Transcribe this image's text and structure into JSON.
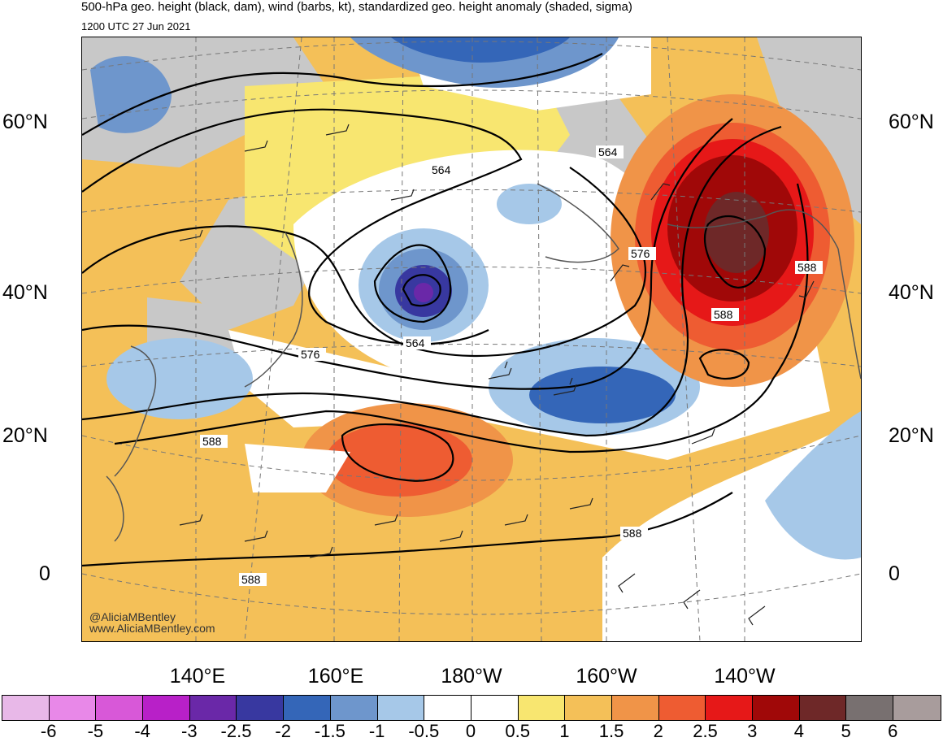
{
  "header": {
    "title": "500-hPa geo. height (black, dam), wind (barbs, kt), standardized geo. height anomaly (shaded, sigma)",
    "valid_time": "1200 UTC 27 Jun 2021"
  },
  "map": {
    "lat_labels": [
      "60°N",
      "40°N",
      "20°N",
      "0"
    ],
    "lon_labels": [
      "140°E",
      "160°E",
      "180°W",
      "160°W",
      "140°W"
    ],
    "contour_labels": [
      "564",
      "564",
      "564",
      "576",
      "576",
      "588",
      "588",
      "588",
      "588",
      "588"
    ],
    "credits": [
      "@AliciaMBentley",
      "www.AliciaMBentley.com"
    ]
  },
  "colorbar": {
    "colors": [
      "#e8b8e8",
      "#e888e8",
      "#d858d8",
      "#b820c8",
      "#6a28a8",
      "#3838a0",
      "#3466b8",
      "#6e96cc",
      "#a6c8e8",
      "#ffffff",
      "#ffffff",
      "#f8e670",
      "#f4c058",
      "#f09448",
      "#ee5c32",
      "#e61818",
      "#a00808",
      "#6e2828",
      "#787070",
      "#a89c9c"
    ],
    "labels": [
      "-6",
      "-5",
      "-4",
      "-3",
      "-2.5",
      "-2",
      "-1.5",
      "-1",
      "-0.5",
      "0",
      "0.5",
      "1",
      "1.5",
      "2",
      "2.5",
      "3",
      "4",
      "5",
      "6"
    ]
  }
}
